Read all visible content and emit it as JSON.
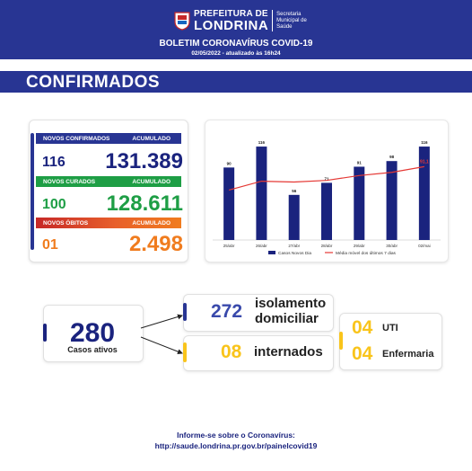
{
  "header": {
    "brand_top": "PREFEITURA DE",
    "brand_bottom": "LONDRINA",
    "brand_sub_1": "Secretaria",
    "brand_sub_2": "Municipal de",
    "brand_sub_3": "Saúde",
    "bulletin_title": "BOLETIM CORONAVÍRUS COVID-19",
    "bulletin_date": "02/05/2022 - atualizado às 16h24",
    "section_title": "CONFIRMADOS"
  },
  "colors": {
    "navy": "#283593",
    "green": "#1e9e45",
    "orange": "#f07c1e",
    "red": "#c62828",
    "yellow": "#f9c41b"
  },
  "stats": {
    "confirmados": {
      "header": "NOVOS CONFIRMADOS",
      "acc_label": "ACUMULADO",
      "new": "116",
      "total": "131.389"
    },
    "curados": {
      "header": "NOVOS CURADOS",
      "acc_label": "ACUMULADO",
      "new": "100",
      "total": "128.611"
    },
    "obitos": {
      "header": "NOVOS ÓBITOS",
      "acc_label": "ACUMULADO",
      "new": "01",
      "total": "2.498"
    }
  },
  "chart_data": {
    "type": "bar",
    "categories": [
      "25/abr",
      "26/abr",
      "27/abr",
      "28/abr",
      "29/abr",
      "30/abr",
      "02/mai"
    ],
    "series": [
      {
        "name": "Casos Novos Dia",
        "type": "bar",
        "values": [
          90,
          116,
          56,
          71,
          91,
          98,
          116
        ],
        "color": "#1a237e"
      },
      {
        "name": "Média móvel dos últimos 7 dias",
        "type": "line",
        "values": [
          62,
          73,
          72,
          74,
          80,
          84,
          91.1
        ],
        "color": "#e53935"
      }
    ],
    "data_labels": [
      "90",
      "116",
      "56",
      "71",
      "91",
      "98",
      "116"
    ],
    "line_end_label": "91,1",
    "ylim": [
      0,
      125
    ],
    "legend_position": "bottom"
  },
  "active": {
    "count": "280",
    "label": "Casos ativos"
  },
  "isolation": {
    "count": "272",
    "label_1": "isolamento",
    "label_2": "domiciliar"
  },
  "hospital": {
    "count": "08",
    "label": "internados"
  },
  "uti": {
    "count": "04",
    "label": "UTI"
  },
  "ward": {
    "count": "04",
    "label": "Enfermaria"
  },
  "footer": {
    "line1": "Informe-se sobre o Coronavírus:",
    "line2": "http://saude.londrina.pr.gov.br/painelcovid19"
  }
}
